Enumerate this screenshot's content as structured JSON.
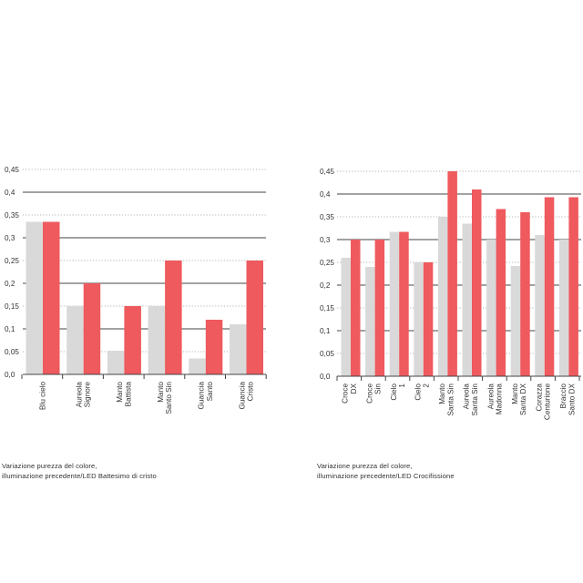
{
  "colors": {
    "gray": "#d9d9d9",
    "red": "#ee5a5e",
    "grid": "#9a9a9a",
    "axis": "#444444"
  },
  "chart_data": [
    {
      "type": "bar",
      "categories": [
        [
          "Blu cielo"
        ],
        [
          "Aureola",
          "Signore"
        ],
        [
          "Manto",
          "Battista"
        ],
        [
          "Manto",
          "Santo Sin"
        ],
        [
          "Guancia",
          "Santo"
        ],
        [
          "Guancia",
          "Cristo"
        ]
      ],
      "series": [
        {
          "color": "#d9d9d9",
          "values": [
            0.335,
            0.15,
            0.052,
            0.15,
            0.035,
            0.11
          ]
        },
        {
          "color": "#ee5a5e",
          "values": [
            0.335,
            0.2,
            0.15,
            0.25,
            0.12,
            0.25
          ]
        }
      ],
      "yticks": [
        "0,0",
        "0,05",
        "0,1",
        "0,15",
        "0,2",
        "0,25",
        "0,3",
        "0,35",
        "0,4",
        "0,45"
      ],
      "ylim": [
        0,
        0.45
      ],
      "grid": true
    },
    {
      "type": "bar",
      "categories": [
        [
          "Croce",
          "DX"
        ],
        [
          "Croce",
          "Sin"
        ],
        [
          "Cielo",
          "1"
        ],
        [
          "Cielo",
          "2"
        ],
        [
          "Manto",
          "Santa Sin"
        ],
        [
          "Aureola",
          "Santa Sin"
        ],
        [
          "Aureola",
          "Madonna"
        ],
        [
          "Manto",
          "Santa DX"
        ],
        [
          "Corazza",
          "Centurione"
        ],
        [
          "Braccio",
          "Santo DX"
        ]
      ],
      "series": [
        {
          "color": "#d9d9d9",
          "values": [
            0.26,
            0.24,
            0.317,
            0.25,
            0.35,
            0.335,
            0.3,
            0.242,
            0.31,
            0.3
          ]
        },
        {
          "color": "#ee5a5e",
          "values": [
            0.3,
            0.3,
            0.317,
            0.25,
            0.45,
            0.41,
            0.367,
            0.36,
            0.393,
            0.393
          ]
        }
      ],
      "yticks": [
        "0,0",
        "0,05",
        "0,1",
        "0,15",
        "0,2",
        "0,25",
        "0,3",
        "0,35",
        "0,4",
        "0,45"
      ],
      "ylim": [
        0,
        0.45
      ],
      "grid": true
    }
  ],
  "captions": {
    "left": {
      "line1": "Variazione purezza del colore,",
      "line2": "illuminazione precedente/LED Battesimo di cristo"
    },
    "right": {
      "line1": "Variazione purezza del colore,",
      "line2": "illuminazione precedente/LED Crocifissione"
    }
  }
}
